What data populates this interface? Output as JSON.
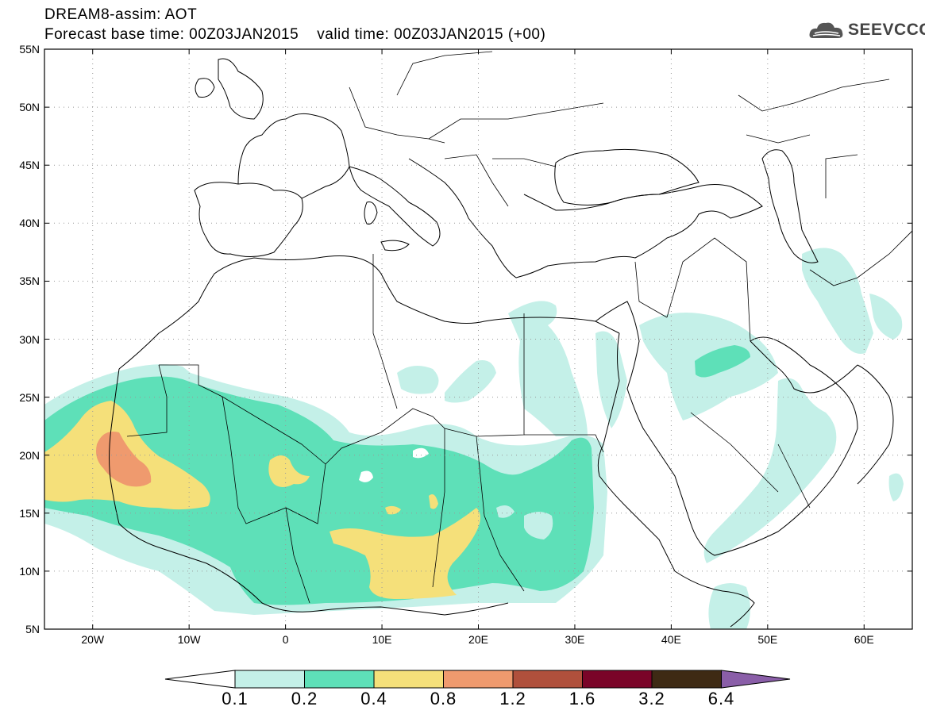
{
  "header": {
    "line1": "DREAM8-assim: AOT",
    "line2": "Forecast base time: 00Z03JAN2015    valid time: 00Z03JAN2015 (+00)",
    "logo_text": "SEEVCCC",
    "logo_icon": "cloud-icon"
  },
  "map": {
    "projection": "lat-lon",
    "lat_range": [
      5,
      55
    ],
    "lon_range": [
      -25,
      65
    ],
    "lat_labels": [
      "55N",
      "50N",
      "45N",
      "40N",
      "35N",
      "30N",
      "25N",
      "20N",
      "15N",
      "10N",
      "5N"
    ],
    "lon_labels": [
      "20W",
      "10W",
      "0",
      "10E",
      "20E",
      "30E",
      "40E",
      "50E",
      "60E"
    ],
    "gridlines": "dotted"
  },
  "colorbar": {
    "labels": [
      "0.1",
      "0.2",
      "0.4",
      "0.8",
      "1.2",
      "1.6",
      "3.2",
      "6.4"
    ],
    "colors": {
      "below": "#ffffff",
      "c1": "#c4f0e8",
      "c2": "#5ee0b8",
      "c3": "#f5e07a",
      "c4": "#ef9a6e",
      "c5": "#b0503c",
      "c6": "#7a0428",
      "c7": "#3e2a14",
      "above": "#8a5ea8"
    }
  }
}
